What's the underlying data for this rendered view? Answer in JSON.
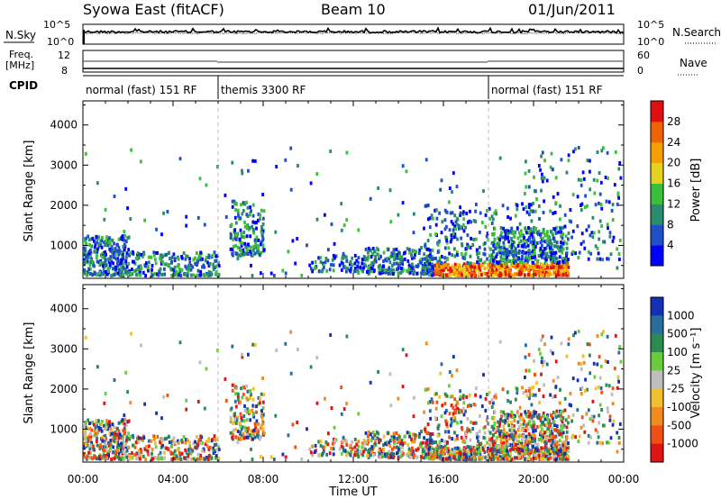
{
  "header": {
    "station": "Syowa East (fitACF)",
    "beam": "Beam 10",
    "date": "01/Jun/2011"
  },
  "strip_labels": {
    "nsky": "N.Sky",
    "nsearch": "N.Search",
    "freq_line1": "Freq.",
    "freq_line2": "[MHz]",
    "nave": "Nave",
    "cpid": "CPID",
    "nsky_top": "10^5",
    "nsky_bottom": "10^0",
    "nsearch_top": "10^5",
    "nsearch_bottom": "10^0",
    "freq_top": "12",
    "freq_bottom": "8",
    "nave_top": "60",
    "nave_bottom": "0"
  },
  "cpid_segments": [
    {
      "start_hour": 0,
      "end_hour": 6,
      "label": "normal (fast) 151 RF"
    },
    {
      "start_hour": 6,
      "end_hour": 18,
      "label": "themis 3300 RF"
    },
    {
      "start_hour": 18,
      "end_hour": 24,
      "label": "normal (fast) 151 RF"
    }
  ],
  "chart_data": [
    {
      "type": "heatmap",
      "name": "power",
      "ylabel": "Slant Range [km]",
      "xlim_hours": [
        0,
        24
      ],
      "ylim": [
        180,
        4600
      ],
      "yticks": [
        1000,
        2000,
        3000,
        4000
      ],
      "colorbar": {
        "label": "Power [dB]",
        "ticks": [
          "4",
          "8",
          "12",
          "16",
          "20",
          "24",
          "28"
        ],
        "colors": [
          "#0000ff",
          "#2050c8",
          "#2a8c6e",
          "#3cc03c",
          "#e6d21e",
          "#f5a000",
          "#f06400",
          "#e01010"
        ]
      }
    },
    {
      "type": "heatmap",
      "name": "velocity",
      "ylabel": "Slant Range [km]",
      "xlim_hours": [
        0,
        24
      ],
      "ylim": [
        180,
        4600
      ],
      "yticks": [
        1000,
        2000,
        3000,
        4000
      ],
      "colorbar": {
        "label": "Velocity [m s^-1]",
        "ticks": [
          "1000",
          "500",
          "100",
          "25",
          "-25",
          "-100",
          "-500",
          "-1000"
        ],
        "colors": [
          "#1430b4",
          "#286e9a",
          "#2a8c50",
          "#6acc3a",
          "#bebebe",
          "#f0c030",
          "#f08c1e",
          "#f05014",
          "#e01414"
        ]
      }
    }
  ],
  "xaxis": {
    "label": "Time UT",
    "ticks": [
      "00:00",
      "04:00",
      "08:00",
      "12:00",
      "16:00",
      "20:00",
      "00:00"
    ]
  }
}
